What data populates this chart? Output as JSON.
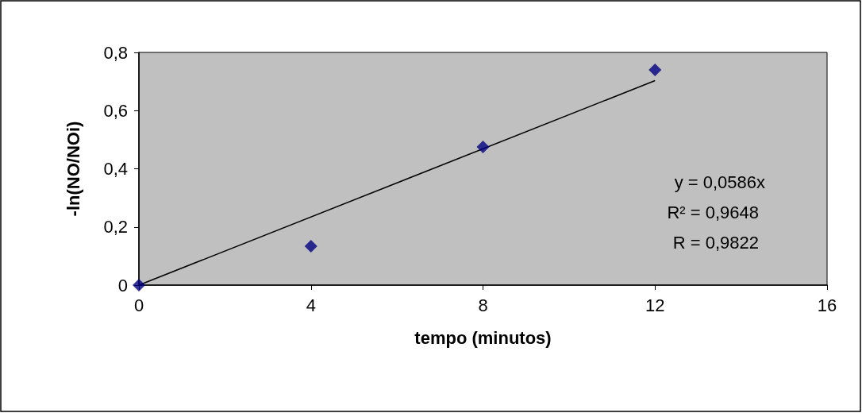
{
  "chart_data": {
    "type": "scatter",
    "xlabel": "tempo (minutos)",
    "ylabel": "-ln(NO/NOi)",
    "series": [
      {
        "color": "#000080",
        "x": [
          0,
          4,
          8,
          12
        ],
        "values": [
          0,
          0.134,
          0.475,
          0.74
        ]
      },
      {
        "type": "line",
        "color": "#000000",
        "marker": "none",
        "x": [
          0,
          12
        ],
        "values": [
          0,
          0.703
        ]
      }
    ],
    "xlim": [
      0,
      16
    ],
    "xticks": [
      0,
      4,
      8,
      12,
      16
    ],
    "ylim": [
      0,
      0.8
    ],
    "yticks": [
      0,
      {
        "value": 0.2,
        "label": "0,2"
      },
      {
        "value": 0.4,
        "label": "0,4"
      },
      {
        "value": 0.6,
        "label": "0,6"
      },
      {
        "value": 0.8,
        "label": "0,8"
      }
    ],
    "annotations": [
      "y = 0,0586x",
      "R² = 0,9648",
      "R = 0,9822"
    ],
    "marker": "diamond",
    "grid": false
  }
}
